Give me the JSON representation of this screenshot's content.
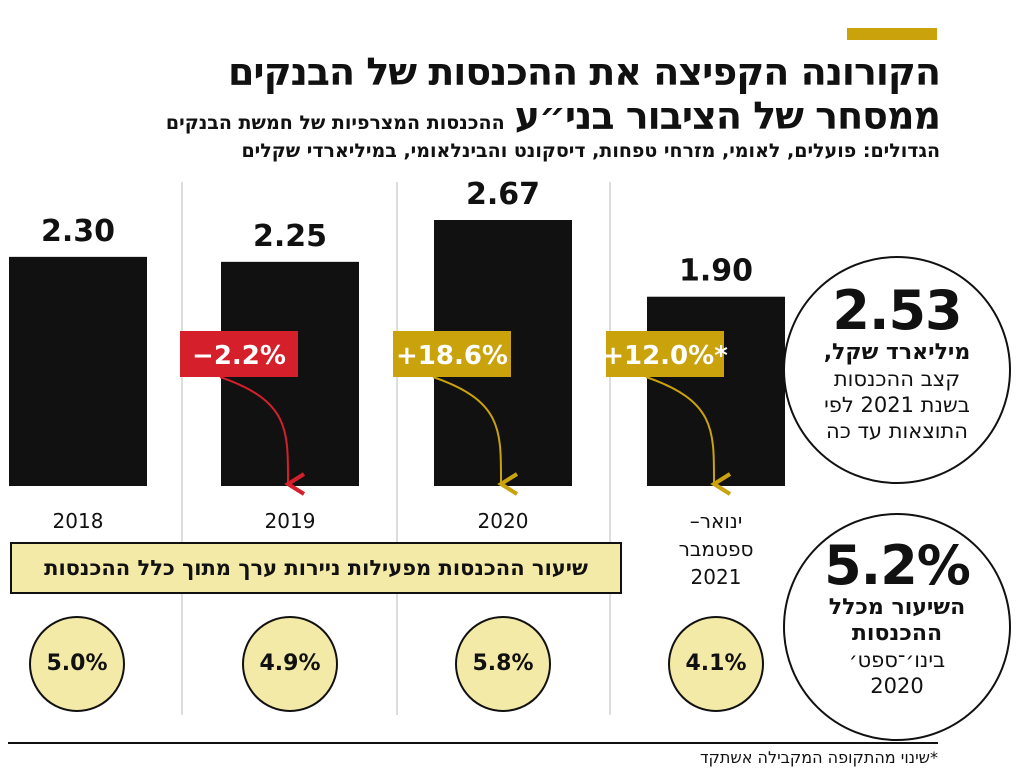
{
  "header": {
    "title_line1": "הקורונה הקפיצה את ההכנסות של הבנקים",
    "title_line2": "ממסחר של הציבור בני״ע",
    "subtitle_part1": "ההכנסות המצרפיות של חמשת הבנקים",
    "subtitle_part2": "הגדולים: פועלים, לאומי, מזרחי טפחות, דיסקונט והבינלאומי, במיליארדי שקלים"
  },
  "colors": {
    "accent": "#c9a20c",
    "negative": "#d51f2a",
    "bar": "#111111",
    "share_fill": "#f4eaa8"
  },
  "chart_data": {
    "type": "bar",
    "title": "הקורונה הקפיצה את ההכנסות של הבנקים ממסחר של הציבור בני״ע",
    "ylabel": "במיליארדי שקלים",
    "ylim": [
      0,
      3
    ],
    "categories": [
      "2018",
      "2019",
      "2020",
      "ינואר–ספטמבר 2021"
    ],
    "category_lines": [
      [
        "2018"
      ],
      [
        "2019"
      ],
      [
        "2020"
      ],
      [
        "ינואר–",
        "ספטמבר",
        "2021"
      ]
    ],
    "values": [
      2.3,
      2.25,
      2.67,
      1.9
    ],
    "value_labels": [
      "2.30",
      "2.25",
      "2.67",
      "1.90"
    ],
    "changes": [
      null,
      "−2.2%",
      "+18.6%",
      "+12.0%*"
    ],
    "change_colors": [
      null,
      "#d51f2a",
      "#c9a20c",
      "#c9a20c"
    ],
    "securities_share": [
      "5.0%",
      "4.9%",
      "5.8%",
      "4.1%"
    ]
  },
  "share_box_label": "שיעור ההכנסות מפעילות ניירות ערך מתוך כלל ההכנסות",
  "forecast_circle": {
    "value": "2.53",
    "bold": "מיליארד שקל,",
    "lines": [
      "קצב ההכנסות",
      "בשנת 2021 לפי",
      "התוצאות עד כה"
    ]
  },
  "share_2020_circle": {
    "value": "5.2%",
    "bold_lines": [
      "השיעור מכלל",
      "ההכנסות"
    ],
    "lines": [
      "בינו׳־ספט׳",
      "2020"
    ]
  },
  "footnote": "*שינוי מהתקופה המקבילה אשתקד"
}
